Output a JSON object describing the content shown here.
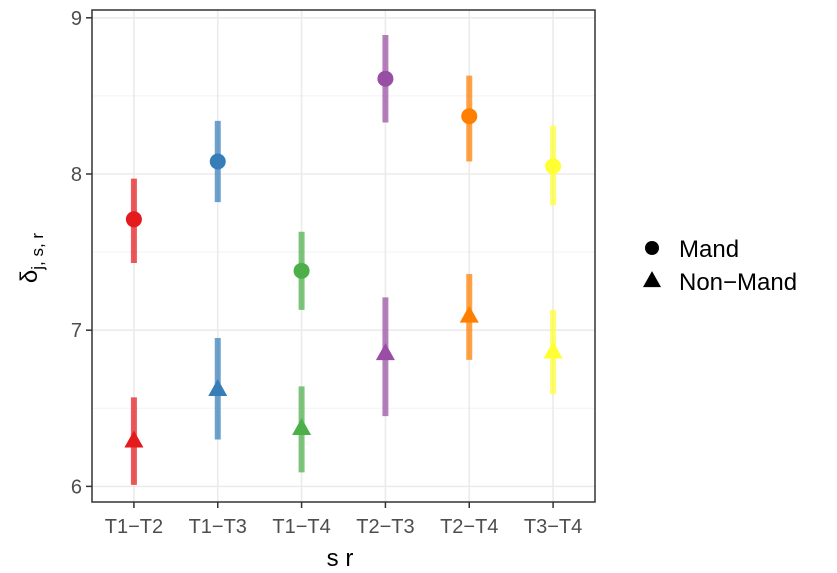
{
  "chart_data": {
    "type": "scatter",
    "title": "",
    "xlabel": "s r",
    "ylabel_main": "δ",
    "ylabel_sub": "j, s, r",
    "categories": [
      "T1−T2",
      "T1−T3",
      "T1−T4",
      "T2−T3",
      "T2−T4",
      "T3−T4"
    ],
    "colors": [
      "#e41a1c",
      "#377eb8",
      "#4daf4a",
      "#984ea3",
      "#ff7f00",
      "#ffff33"
    ],
    "ylim": [
      5.9,
      9.05
    ],
    "yticks": [
      6,
      7,
      8,
      9
    ],
    "yminor": [
      6.5,
      7.5,
      8.5
    ],
    "grid": true,
    "legend_position": "right",
    "series": [
      {
        "name": "Mand",
        "shape": "circle",
        "values": [
          7.71,
          8.08,
          7.38,
          8.61,
          8.37,
          8.05
        ],
        "lower": [
          7.43,
          7.82,
          7.13,
          8.33,
          8.08,
          7.8
        ],
        "upper": [
          7.97,
          8.34,
          7.63,
          8.89,
          8.63,
          8.31
        ]
      },
      {
        "name": "Non−Mand",
        "shape": "triangle",
        "values": [
          6.29,
          6.62,
          6.37,
          6.85,
          7.09,
          6.86
        ],
        "lower": [
          6.01,
          6.3,
          6.09,
          6.45,
          6.81,
          6.59
        ],
        "upper": [
          6.57,
          6.95,
          6.64,
          7.21,
          7.36,
          7.13
        ]
      }
    ]
  }
}
